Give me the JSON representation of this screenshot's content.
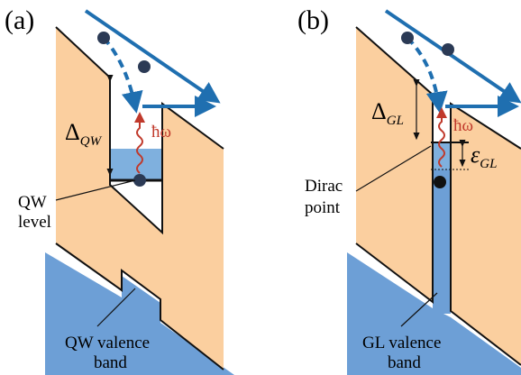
{
  "panels": [
    {
      "label": "(a)",
      "gap": {
        "symbol": "Δ",
        "subscript": "QW"
      },
      "photon": "ħω",
      "level_label": [
        "QW",
        "level"
      ],
      "valence_label": [
        "QW valence",
        "band"
      ]
    },
    {
      "label": "(b)",
      "gap": {
        "symbol": "Δ",
        "subscript": "GL"
      },
      "photon": "ħω",
      "energy": {
        "symbol": "ε",
        "subscript": "GL"
      },
      "level_label": [
        "Dirac",
        "point"
      ],
      "valence_label": [
        "GL valence",
        "band"
      ]
    }
  ]
}
